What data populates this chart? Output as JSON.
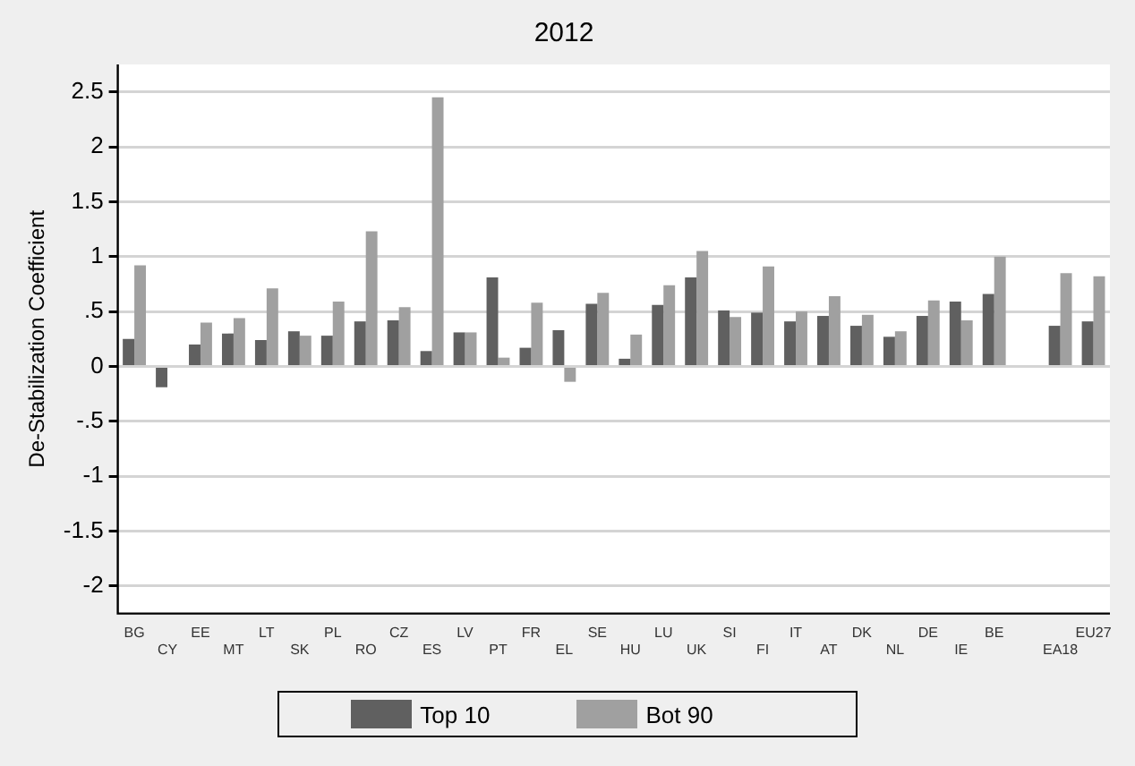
{
  "chart_data": {
    "type": "bar",
    "title": "2012",
    "ylabel": "De-Stabilization Coefficient",
    "categories": [
      "BG",
      "CY",
      "EE",
      "MT",
      "LT",
      "SK",
      "PL",
      "RO",
      "CZ",
      "ES",
      "LV",
      "PT",
      "FR",
      "EL",
      "SE",
      "HU",
      "LU",
      "UK",
      "SI",
      "FI",
      "IT",
      "AT",
      "DK",
      "NL",
      "DE",
      "IE",
      "BE",
      null,
      "EA18",
      "EU27"
    ],
    "series": [
      {
        "name": "Top 10",
        "color": "#606060",
        "values": [
          0.25,
          -0.19,
          0.2,
          0.3,
          0.24,
          0.32,
          0.28,
          0.41,
          0.42,
          0.14,
          0.31,
          0.81,
          0.17,
          0.33,
          0.57,
          0.07,
          0.56,
          0.81,
          0.51,
          0.49,
          0.41,
          0.46,
          0.37,
          0.27,
          0.46,
          0.59,
          0.66,
          null,
          0.37,
          0.41
        ]
      },
      {
        "name": "Bot 90",
        "color": "#a0a0a0",
        "values": [
          0.92,
          null,
          0.4,
          0.44,
          0.71,
          0.28,
          0.59,
          1.23,
          0.54,
          2.45,
          0.31,
          0.08,
          0.58,
          -0.14,
          0.67,
          0.29,
          0.74,
          1.05,
          0.45,
          0.91,
          0.5,
          0.64,
          0.47,
          0.32,
          0.6,
          0.42,
          1.0,
          null,
          0.85,
          0.82
        ]
      }
    ],
    "ylim": [
      -2.25,
      2.75
    ],
    "yticks": [
      {
        "value": -2,
        "label": "-2"
      },
      {
        "value": -1.5,
        "label": "-1.5"
      },
      {
        "value": -1,
        "label": "-1"
      },
      {
        "value": -0.5,
        "label": "-.5"
      },
      {
        "value": 0,
        "label": "0"
      },
      {
        "value": 0.5,
        "label": ".5"
      },
      {
        "value": 1,
        "label": "1"
      },
      {
        "value": 1.5,
        "label": "1.5"
      },
      {
        "value": 2,
        "label": "2"
      },
      {
        "value": 2.5,
        "label": "2.5"
      }
    ],
    "grid": "y",
    "legend": "bottom"
  }
}
